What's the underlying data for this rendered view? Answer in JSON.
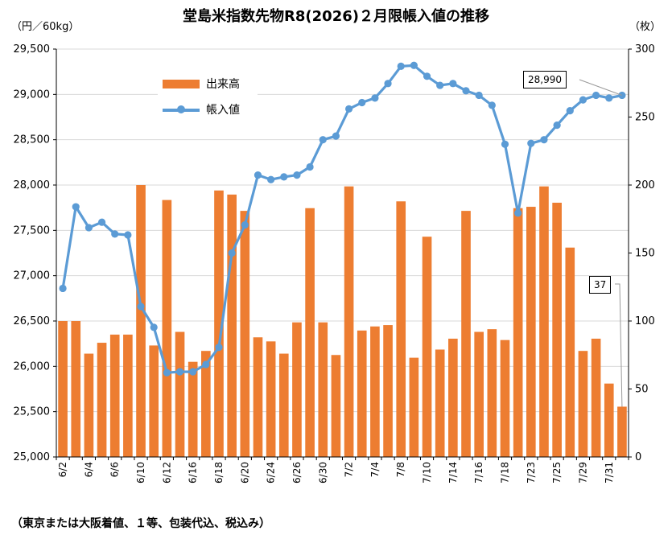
{
  "title": "堂島米指数先物R8(2026)２月限帳入値の推移",
  "unit_left": "（円／60kg）",
  "unit_right": "（枚）",
  "footnote": "（東京または大阪着値、１等、包装代込、税込み）",
  "legend": {
    "bar_label": "出来高",
    "line_label": "帳入値"
  },
  "callouts": {
    "price_last": "28,990",
    "volume_last": "37"
  },
  "colors": {
    "bar": "#ED7D31",
    "line": "#5B9BD5",
    "grid": "#D9D9D9"
  },
  "chart_data": {
    "type": "bar+line",
    "title": "堂島米指数先物R8(2026)２月限帳入値の推移",
    "xlabel": "",
    "categories": [
      "6/2",
      "6/3",
      "6/4",
      "6/5",
      "6/6",
      "6/9",
      "6/10",
      "6/11",
      "6/12",
      "6/13",
      "6/16",
      "6/17",
      "6/18",
      "6/19",
      "6/20",
      "6/23",
      "6/24",
      "6/25",
      "6/26",
      "6/27",
      "6/30",
      "7/1",
      "7/2",
      "7/3",
      "7/4",
      "7/7",
      "7/8",
      "7/9",
      "7/10",
      "7/11",
      "7/14",
      "7/15",
      "7/16",
      "7/17",
      "7/18",
      "7/22",
      "7/23",
      "7/24",
      "7/25",
      "7/28",
      "7/29",
      "7/30",
      "7/31",
      "8/1"
    ],
    "tick_labels": [
      "6/2",
      "",
      "6/4",
      "",
      "6/6",
      "",
      "6/10",
      "",
      "6/12",
      "",
      "6/16",
      "",
      "6/18",
      "",
      "6/20",
      "",
      "6/24",
      "",
      "6/26",
      "",
      "6/30",
      "",
      "7/2",
      "",
      "7/4",
      "",
      "7/8",
      "",
      "7/10",
      "",
      "7/14",
      "",
      "7/16",
      "",
      "7/18",
      "",
      "7/23",
      "",
      "7/25",
      "",
      "7/29",
      "",
      "7/31",
      ""
    ],
    "series": [
      {
        "name": "出来高",
        "type": "bar",
        "axis": "right",
        "values": [
          100,
          100,
          76,
          84,
          90,
          90,
          200,
          82,
          189,
          92,
          70,
          78,
          196,
          193,
          181,
          88,
          85,
          76,
          99,
          183,
          99,
          75,
          199,
          93,
          96,
          97,
          188,
          73,
          162,
          79,
          87,
          181,
          92,
          94,
          86,
          183,
          184,
          199,
          187,
          154,
          78,
          87,
          54,
          37
        ]
      },
      {
        "name": "帳入値",
        "type": "line",
        "axis": "left",
        "values": [
          26860,
          27760,
          27530,
          27590,
          27460,
          27450,
          26660,
          26430,
          25930,
          25940,
          25940,
          26020,
          26210,
          27250,
          27560,
          28110,
          28060,
          28090,
          28110,
          28200,
          28500,
          28540,
          28840,
          28910,
          28960,
          29120,
          29310,
          29320,
          29200,
          29100,
          29120,
          29040,
          28990,
          28880,
          28450,
          27690,
          28460,
          28500,
          28660,
          28820,
          28940,
          28990,
          28960,
          28990
        ]
      }
    ],
    "ylim_left": [
      25000,
      29500
    ],
    "yticks_left": [
      "25,000",
      "25,500",
      "26,000",
      "26,500",
      "27,000",
      "27,500",
      "28,000",
      "28,500",
      "29,000",
      "29,500"
    ],
    "ylim_right": [
      0,
      300
    ],
    "yticks_right": [
      "0",
      "50",
      "100",
      "150",
      "200",
      "250",
      "300"
    ],
    "ylabel_left": "（円／60kg）",
    "ylabel_right": "（枚）",
    "grid": true,
    "legend_position": "top-left"
  }
}
